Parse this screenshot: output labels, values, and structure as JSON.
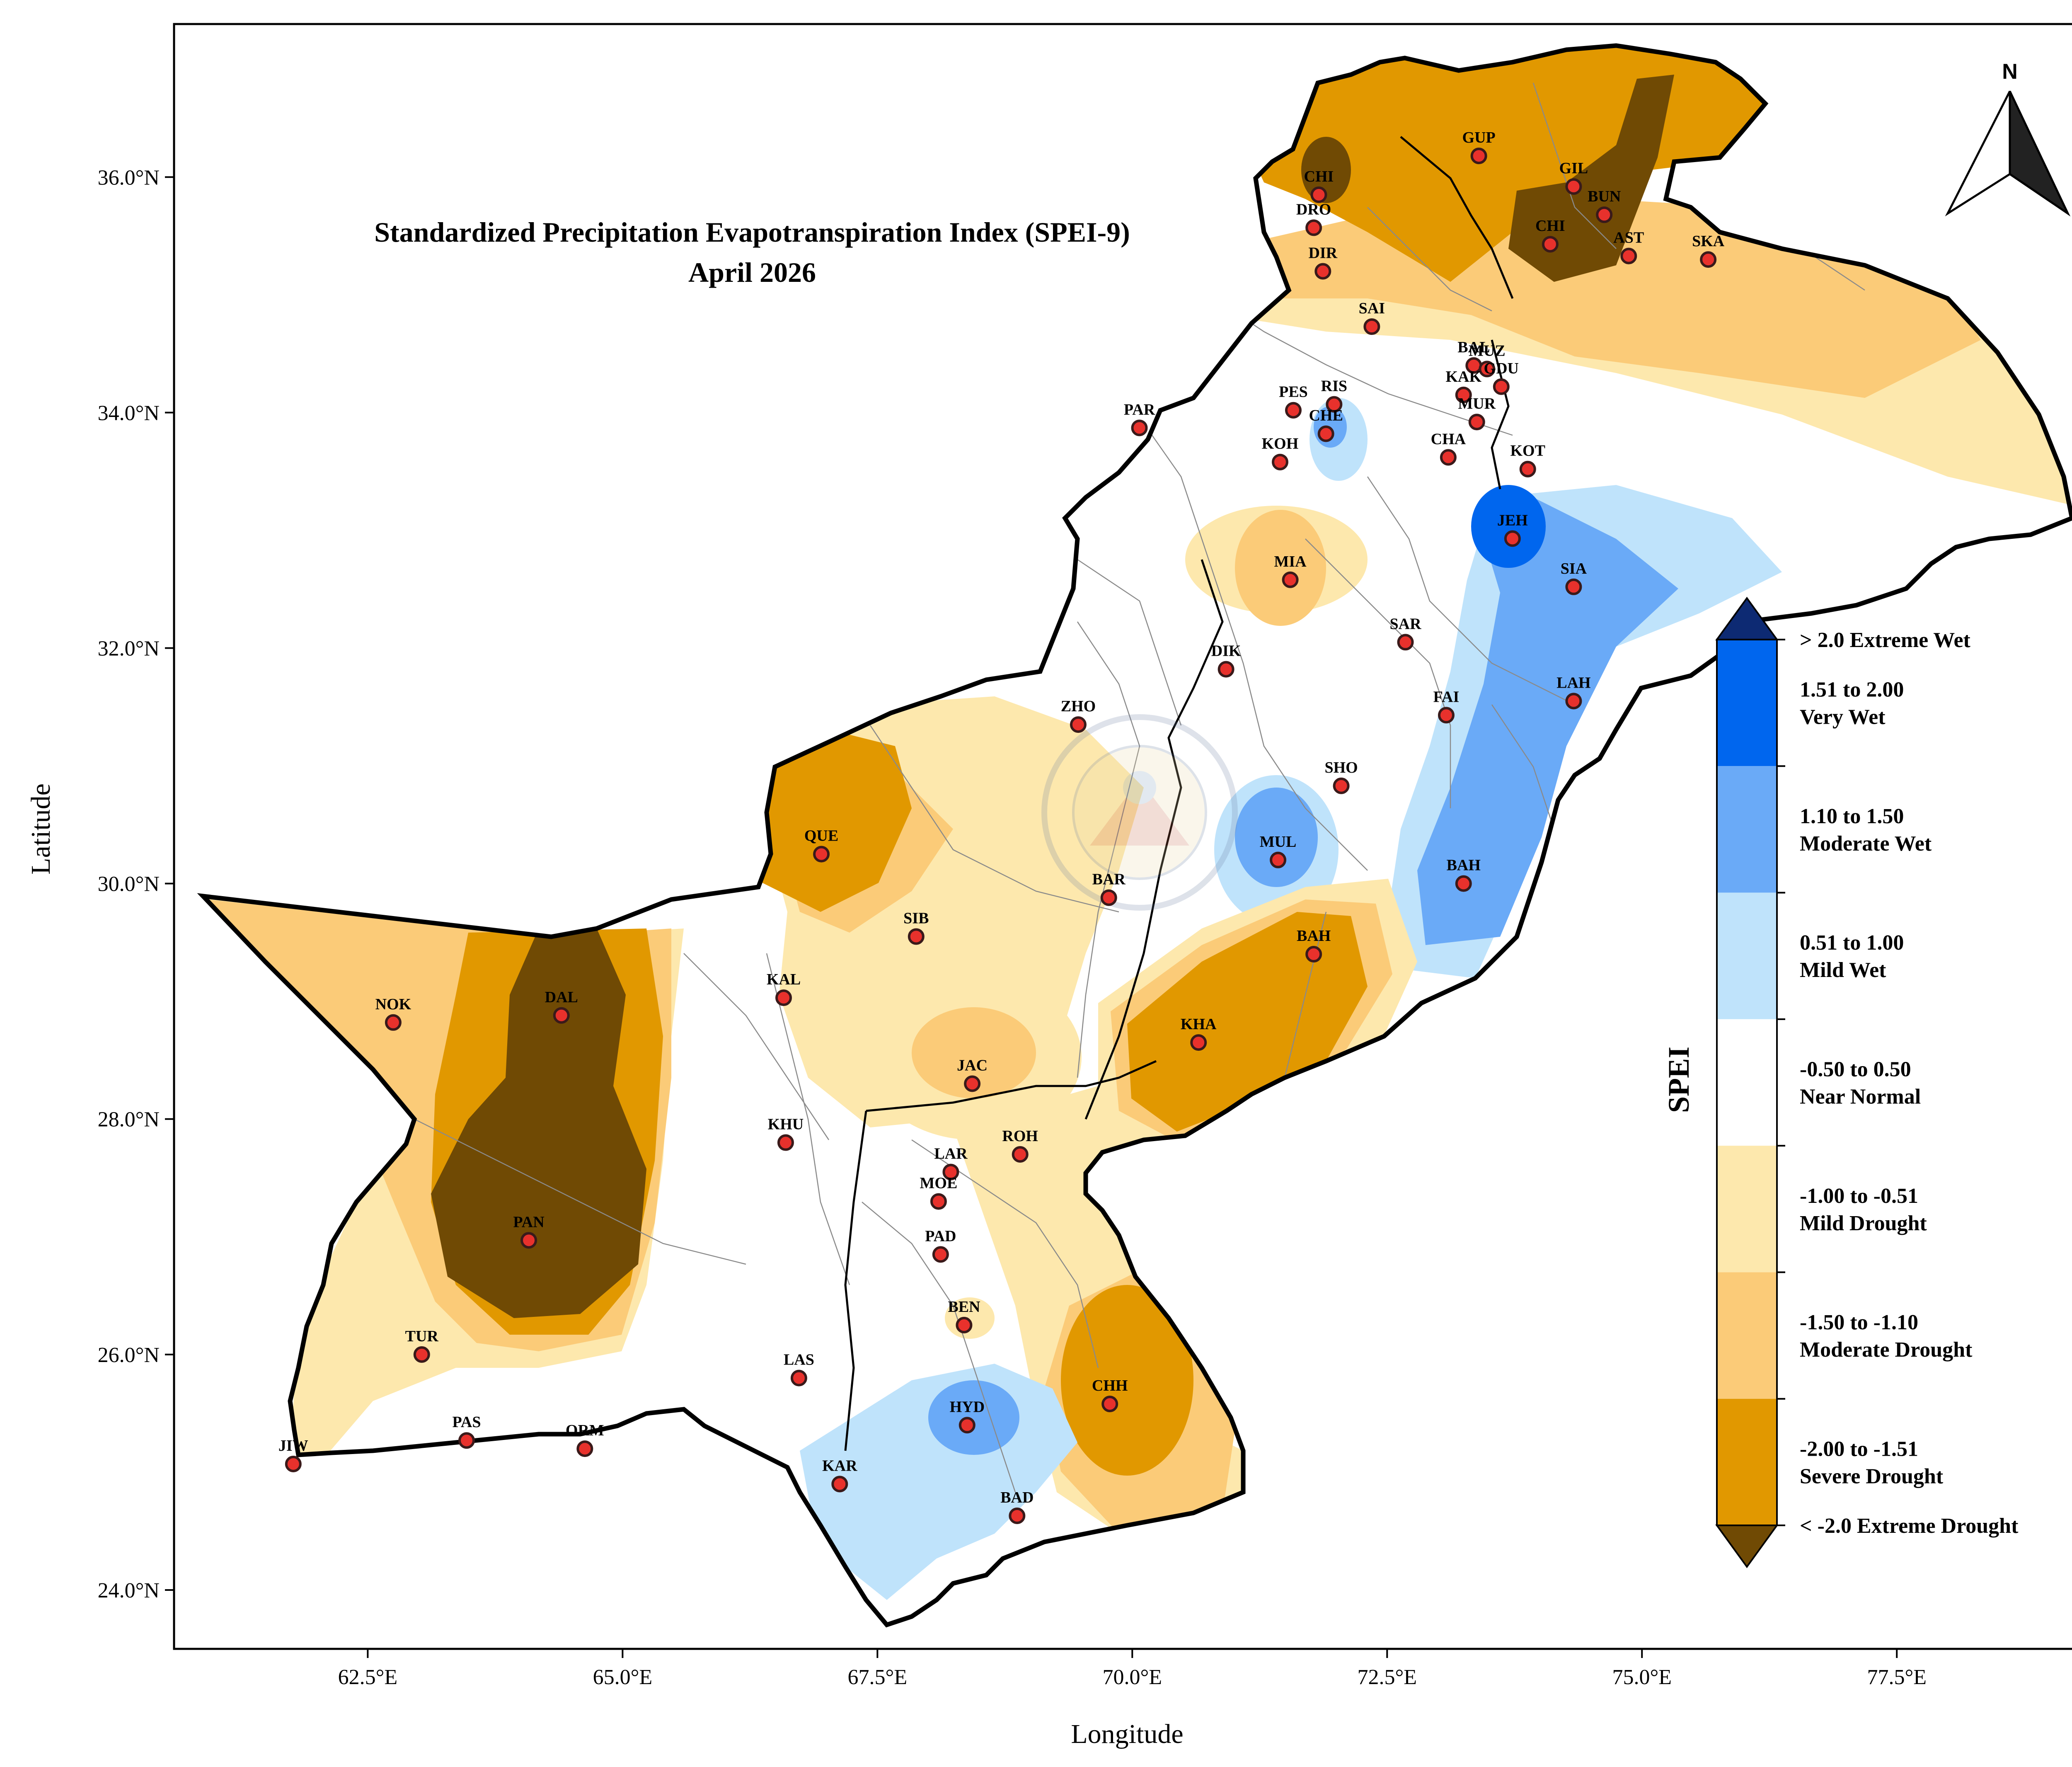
{
  "title": {
    "line1": "Standardized Precipitation Evapotranspiration Index (SPEI-9)",
    "line2": "April 2026"
  },
  "axes": {
    "xlabel": "Longitude",
    "ylabel": "Latitude",
    "x_range": [
      60.6,
      79.3
    ],
    "y_range": [
      23.5,
      37.3
    ],
    "x_ticks": [
      {
        "value": 62.5,
        "label": "62.5°E"
      },
      {
        "value": 65.0,
        "label": "65.0°E"
      },
      {
        "value": 67.5,
        "label": "67.5°E"
      },
      {
        "value": 70.0,
        "label": "70.0°E"
      },
      {
        "value": 72.5,
        "label": "72.5°E"
      },
      {
        "value": 75.0,
        "label": "75.0°E"
      },
      {
        "value": 77.5,
        "label": "77.5°E"
      }
    ],
    "y_ticks": [
      {
        "value": 24.0,
        "label": "24.0°N"
      },
      {
        "value": 26.0,
        "label": "26.0°N"
      },
      {
        "value": 28.0,
        "label": "28.0°N"
      },
      {
        "value": 30.0,
        "label": "30.0°N"
      },
      {
        "value": 32.0,
        "label": "32.0°N"
      },
      {
        "value": 34.0,
        "label": "34.0°N"
      },
      {
        "value": 36.0,
        "label": "36.0°N"
      }
    ]
  },
  "north_arrow": {
    "label": "N"
  },
  "legend": {
    "title": "SPEI",
    "classes": [
      {
        "lines": [
          "> 2.0 Extreme Wet"
        ],
        "color": "#0d2a73",
        "kind": "cap-top"
      },
      {
        "lines": [
          "1.51 to 2.00",
          "Very Wet"
        ],
        "color": "#0066ee",
        "kind": "band"
      },
      {
        "lines": [
          "1.10 to 1.50",
          "Moderate Wet"
        ],
        "color": "#6aaaf7",
        "kind": "band"
      },
      {
        "lines": [
          "0.51 to 1.00",
          "Mild Wet"
        ],
        "color": "#bfe3fb",
        "kind": "band"
      },
      {
        "lines": [
          "-0.50 to 0.50",
          "Near Normal"
        ],
        "color": "#ffffff",
        "kind": "band"
      },
      {
        "lines": [
          "-1.00 to -0.51",
          "Mild Drought"
        ],
        "color": "#fde8ad",
        "kind": "band"
      },
      {
        "lines": [
          "-1.50 to -1.10",
          "Moderate Drought"
        ],
        "color": "#fbcb78",
        "kind": "band"
      },
      {
        "lines": [
          "-2.00 to -1.51",
          "Severe Drought"
        ],
        "color": "#e19800",
        "kind": "band"
      },
      {
        "lines": [
          "< -2.0 Extreme Drought"
        ],
        "color": "#704a04",
        "kind": "cap-bottom"
      }
    ]
  },
  "colors": {
    "extreme_wet": "#0d2a73",
    "very_wet": "#0066ee",
    "moderate_wet": "#6aaaf7",
    "mild_wet": "#bfe3fb",
    "near_normal": "#ffffff",
    "mild_drought": "#fde8ad",
    "moderate_drought": "#fbcb78",
    "severe_drought": "#e19800",
    "extreme_drought": "#704a04",
    "station_fill": "#e8312c",
    "border": "#000000",
    "district_lines": "#8a8a8a"
  },
  "map_data": {
    "stations": [
      {
        "code": "GUP",
        "lon": 73.4,
        "lat": 36.18
      },
      {
        "code": "GIL",
        "lon": 74.33,
        "lat": 35.92
      },
      {
        "code": "BUN",
        "lon": 74.63,
        "lat": 35.68
      },
      {
        "code": "CHI",
        "lon": 71.83,
        "lat": 35.85
      },
      {
        "code": "DRO",
        "lon": 71.78,
        "lat": 35.57
      },
      {
        "code": "CHI",
        "lon": 74.1,
        "lat": 35.43
      },
      {
        "code": "AST",
        "lon": 74.87,
        "lat": 35.33
      },
      {
        "code": "SKA",
        "lon": 75.65,
        "lat": 35.3
      },
      {
        "code": "DIR",
        "lon": 71.87,
        "lat": 35.2
      },
      {
        "code": "SAI",
        "lon": 72.35,
        "lat": 34.73
      },
      {
        "code": "BAL",
        "lon": 73.35,
        "lat": 34.4
      },
      {
        "code": "MUZ",
        "lon": 73.48,
        "lat": 34.37
      },
      {
        "code": "KAK",
        "lon": 73.25,
        "lat": 34.15
      },
      {
        "code": "GDU",
        "lon": 73.62,
        "lat": 34.22
      },
      {
        "code": "PES",
        "lon": 71.58,
        "lat": 34.02
      },
      {
        "code": "RIS",
        "lon": 71.98,
        "lat": 34.07
      },
      {
        "code": "CHE",
        "lon": 71.9,
        "lat": 33.82
      },
      {
        "code": "MUR",
        "lon": 73.38,
        "lat": 33.92
      },
      {
        "code": "PAR",
        "lon": 70.07,
        "lat": 33.87
      },
      {
        "code": "KOH",
        "lon": 71.45,
        "lat": 33.58
      },
      {
        "code": "CHA",
        "lon": 73.1,
        "lat": 33.62
      },
      {
        "code": "KOT",
        "lon": 73.88,
        "lat": 33.52
      },
      {
        "code": "JEH",
        "lon": 73.73,
        "lat": 32.93
      },
      {
        "code": "SIA",
        "lon": 74.33,
        "lat": 32.52
      },
      {
        "code": "MIA",
        "lon": 71.55,
        "lat": 32.58
      },
      {
        "code": "SAR",
        "lon": 72.68,
        "lat": 32.05
      },
      {
        "code": "DIK",
        "lon": 70.92,
        "lat": 31.82
      },
      {
        "code": "FAI",
        "lon": 73.08,
        "lat": 31.43
      },
      {
        "code": "LAH",
        "lon": 74.33,
        "lat": 31.55
      },
      {
        "code": "ZHO",
        "lon": 69.47,
        "lat": 31.35
      },
      {
        "code": "SHO",
        "lon": 72.05,
        "lat": 30.83
      },
      {
        "code": "QUE",
        "lon": 66.95,
        "lat": 30.25
      },
      {
        "code": "MUL",
        "lon": 71.43,
        "lat": 30.2
      },
      {
        "code": "BAH",
        "lon": 73.25,
        "lat": 30.0
      },
      {
        "code": "BAR",
        "lon": 69.77,
        "lat": 29.88
      },
      {
        "code": "SIB",
        "lon": 67.88,
        "lat": 29.55
      },
      {
        "code": "BAH",
        "lon": 71.78,
        "lat": 29.4
      },
      {
        "code": "KAL",
        "lon": 66.58,
        "lat": 29.03
      },
      {
        "code": "NOK",
        "lon": 62.75,
        "lat": 28.82
      },
      {
        "code": "DAL",
        "lon": 64.4,
        "lat": 28.88
      },
      {
        "code": "KHA",
        "lon": 70.65,
        "lat": 28.65
      },
      {
        "code": "JAC",
        "lon": 68.43,
        "lat": 28.3
      },
      {
        "code": "KHU",
        "lon": 66.6,
        "lat": 27.8
      },
      {
        "code": "ROH",
        "lon": 68.9,
        "lat": 27.7
      },
      {
        "code": "LAR",
        "lon": 68.22,
        "lat": 27.55
      },
      {
        "code": "MOE",
        "lon": 68.1,
        "lat": 27.3
      },
      {
        "code": "PAD",
        "lon": 68.12,
        "lat": 26.85
      },
      {
        "code": "PAN",
        "lon": 64.08,
        "lat": 26.97
      },
      {
        "code": "BEN",
        "lon": 68.35,
        "lat": 26.25
      },
      {
        "code": "TUR",
        "lon": 63.03,
        "lat": 26.0
      },
      {
        "code": "LAS",
        "lon": 66.73,
        "lat": 25.8
      },
      {
        "code": "CHH",
        "lon": 69.78,
        "lat": 25.58
      },
      {
        "code": "HYD",
        "lon": 68.38,
        "lat": 25.4
      },
      {
        "code": "PAS",
        "lon": 63.47,
        "lat": 25.27
      },
      {
        "code": "ORM",
        "lon": 64.63,
        "lat": 25.2
      },
      {
        "code": "JIW",
        "lon": 61.77,
        "lat": 25.07
      },
      {
        "code": "KAR",
        "lon": 67.13,
        "lat": 24.9
      },
      {
        "code": "BAD",
        "lon": 68.87,
        "lat": 24.63
      }
    ]
  }
}
